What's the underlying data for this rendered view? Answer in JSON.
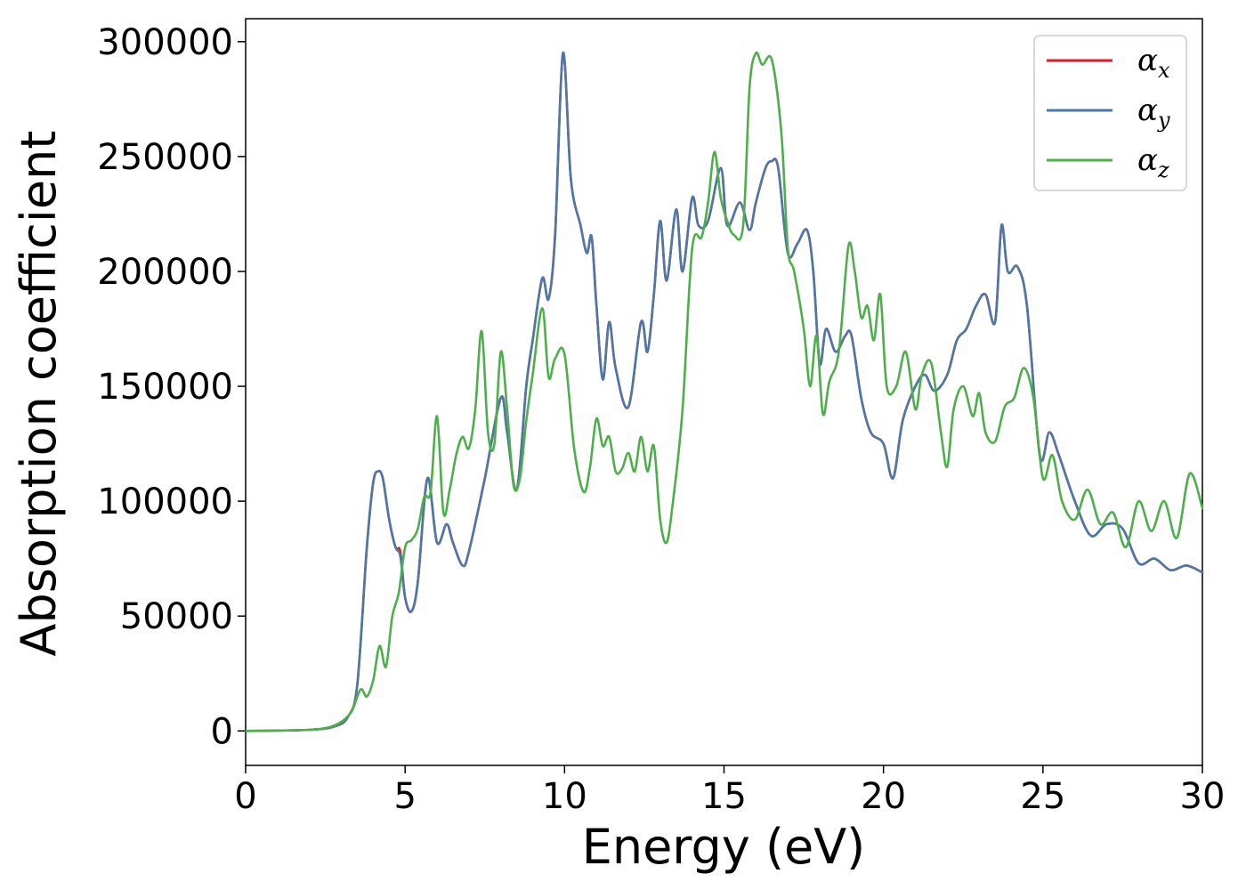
{
  "chart_data": {
    "type": "line",
    "xlabel": "Energy (eV)",
    "ylabel": "Absorption coefficient",
    "xlim": [
      0,
      30
    ],
    "ylim": [
      -15000,
      310000
    ],
    "xticks": [
      0,
      5,
      10,
      15,
      20,
      25,
      30
    ],
    "yticks": [
      0,
      50000,
      100000,
      150000,
      200000,
      250000,
      300000
    ],
    "grid": false,
    "legend_position": "top-right",
    "series": [
      {
        "name": "α_x",
        "legend_main": "α",
        "legend_sub": "x",
        "color": "#e41a1c",
        "x": [
          0,
          2,
          2.8,
          3.2,
          3.5,
          3.8,
          4.0,
          4.15,
          4.3,
          4.5,
          4.7,
          4.85,
          5.0,
          5.2,
          5.4,
          5.7,
          6.0,
          6.3,
          6.5,
          6.8,
          7.0,
          7.5,
          8.0,
          8.2,
          8.5,
          8.8,
          9.0,
          9.3,
          9.5,
          9.7,
          9.95,
          10.2,
          10.5,
          10.7,
          10.85,
          11.0,
          11.2,
          11.4,
          11.6,
          12.0,
          12.4,
          12.6,
          12.8,
          13.0,
          13.2,
          13.5,
          13.7,
          14.0,
          14.2,
          14.5,
          14.9,
          15.1,
          15.5,
          15.8,
          16.0,
          16.3,
          16.5,
          16.7,
          17.0,
          17.3,
          17.6,
          17.8,
          18.0,
          18.2,
          18.5,
          18.8,
          19.0,
          19.3,
          19.6,
          20.0,
          20.3,
          20.6,
          21.0,
          21.3,
          21.6,
          22.0,
          22.3,
          22.6,
          22.9,
          23.2,
          23.5,
          23.7,
          23.9,
          24.2,
          24.5,
          24.9,
          25.2,
          25.5,
          26.0,
          26.5,
          27.0,
          27.5,
          28.0,
          28.5,
          29.0,
          29.5,
          30.0
        ],
        "values": [
          0,
          500,
          2000,
          6000,
          20000,
          80000,
          108000,
          113000,
          110000,
          92000,
          80000,
          78000,
          58000,
          52000,
          65000,
          110000,
          82000,
          90000,
          82000,
          72000,
          78000,
          110000,
          145000,
          130000,
          105000,
          150000,
          170000,
          197000,
          188000,
          215000,
          295000,
          240000,
          220000,
          208000,
          215000,
          185000,
          153000,
          178000,
          158000,
          141000,
          178000,
          165000,
          190000,
          222000,
          196000,
          227000,
          200000,
          232000,
          220000,
          222000,
          245000,
          220000,
          230000,
          218000,
          230000,
          245000,
          248000,
          245000,
          208000,
          212000,
          218000,
          200000,
          160000,
          175000,
          165000,
          172000,
          172000,
          145000,
          130000,
          125000,
          110000,
          135000,
          150000,
          155000,
          148000,
          155000,
          170000,
          175000,
          185000,
          190000,
          178000,
          220000,
          200000,
          202000,
          185000,
          120000,
          130000,
          120000,
          100000,
          85000,
          90000,
          88000,
          73000,
          75000,
          70000,
          72000,
          69000
        ]
      },
      {
        "name": "α_y",
        "legend_main": "α",
        "legend_sub": "y",
        "color": "#4a78a8",
        "x": [
          0,
          2,
          2.8,
          3.2,
          3.5,
          3.8,
          4.0,
          4.15,
          4.3,
          4.5,
          4.7,
          4.85,
          5.0,
          5.2,
          5.4,
          5.7,
          6.0,
          6.3,
          6.5,
          6.8,
          7.0,
          7.5,
          8.0,
          8.2,
          8.5,
          8.8,
          9.0,
          9.3,
          9.5,
          9.7,
          9.95,
          10.2,
          10.5,
          10.7,
          10.85,
          11.0,
          11.2,
          11.4,
          11.6,
          12.0,
          12.4,
          12.6,
          12.8,
          13.0,
          13.2,
          13.5,
          13.7,
          14.0,
          14.2,
          14.5,
          14.9,
          15.1,
          15.5,
          15.8,
          16.0,
          16.3,
          16.5,
          16.7,
          17.0,
          17.3,
          17.6,
          17.8,
          18.0,
          18.2,
          18.5,
          18.8,
          19.0,
          19.3,
          19.6,
          20.0,
          20.3,
          20.6,
          21.0,
          21.3,
          21.6,
          22.0,
          22.3,
          22.6,
          22.9,
          23.2,
          23.5,
          23.7,
          23.9,
          24.2,
          24.5,
          24.9,
          25.2,
          25.5,
          26.0,
          26.5,
          27.0,
          27.5,
          28.0,
          28.5,
          29.0,
          29.5,
          30.0
        ],
        "values": [
          0,
          500,
          2000,
          6000,
          20000,
          80000,
          108000,
          113000,
          110000,
          92000,
          80000,
          76000,
          58000,
          52000,
          65000,
          110000,
          82000,
          90000,
          82000,
          72000,
          78000,
          110000,
          145000,
          130000,
          105000,
          150000,
          170000,
          197000,
          188000,
          215000,
          295000,
          240000,
          220000,
          208000,
          215000,
          185000,
          153000,
          178000,
          158000,
          141000,
          178000,
          165000,
          190000,
          222000,
          196000,
          227000,
          200000,
          232000,
          220000,
          222000,
          245000,
          220000,
          230000,
          218000,
          230000,
          245000,
          248000,
          245000,
          208000,
          212000,
          218000,
          200000,
          160000,
          175000,
          165000,
          172000,
          172000,
          145000,
          130000,
          125000,
          110000,
          135000,
          150000,
          155000,
          148000,
          155000,
          170000,
          175000,
          185000,
          190000,
          178000,
          220000,
          200000,
          202000,
          185000,
          120000,
          130000,
          120000,
          100000,
          85000,
          90000,
          88000,
          73000,
          75000,
          70000,
          72000,
          69000
        ]
      },
      {
        "name": "α_z",
        "legend_main": "α",
        "legend_sub": "z",
        "color": "#4daf4a",
        "x": [
          0,
          2,
          2.8,
          3.3,
          3.6,
          3.8,
          4.0,
          4.2,
          4.4,
          4.6,
          4.8,
          5.0,
          5.2,
          5.4,
          5.6,
          5.8,
          6.0,
          6.2,
          6.4,
          6.6,
          6.8,
          7.0,
          7.2,
          7.4,
          7.6,
          7.8,
          8.0,
          8.2,
          8.4,
          8.6,
          8.8,
          9.0,
          9.3,
          9.5,
          9.7,
          10.0,
          10.3,
          10.6,
          10.8,
          11.0,
          11.2,
          11.4,
          11.6,
          11.8,
          12.0,
          12.2,
          12.4,
          12.6,
          12.8,
          13.0,
          13.2,
          13.4,
          13.7,
          14.0,
          14.3,
          14.5,
          14.7,
          14.9,
          15.1,
          15.3,
          15.6,
          15.8,
          16.0,
          16.2,
          16.5,
          16.8,
          17.0,
          17.2,
          17.5,
          17.7,
          17.9,
          18.1,
          18.3,
          18.6,
          18.9,
          19.1,
          19.3,
          19.5,
          19.7,
          19.9,
          20.1,
          20.4,
          20.7,
          21.0,
          21.2,
          21.5,
          21.8,
          22.0,
          22.2,
          22.5,
          22.8,
          23.0,
          23.2,
          23.5,
          23.8,
          24.1,
          24.4,
          24.7,
          25.0,
          25.3,
          25.6,
          26.0,
          26.4,
          26.8,
          27.2,
          27.6,
          28.0,
          28.4,
          28.8,
          29.2,
          29.6,
          30.0
        ],
        "values": [
          0,
          500,
          2500,
          8000,
          18000,
          15000,
          22000,
          37000,
          28000,
          50000,
          60000,
          80000,
          83000,
          88000,
          102000,
          104000,
          137000,
          95000,
          105000,
          120000,
          128000,
          123000,
          140000,
          174000,
          130000,
          125000,
          165000,
          140000,
          107000,
          110000,
          135000,
          155000,
          184000,
          154000,
          162000,
          164000,
          123000,
          104000,
          115000,
          136000,
          124000,
          128000,
          113000,
          114000,
          121000,
          113000,
          128000,
          113000,
          124000,
          92000,
          82000,
          100000,
          140000,
          210000,
          215000,
          230000,
          252000,
          232000,
          222000,
          216000,
          220000,
          280000,
          295000,
          290000,
          292000,
          260000,
          210000,
          200000,
          175000,
          150000,
          172000,
          138000,
          152000,
          165000,
          211000,
          200000,
          180000,
          185000,
          170000,
          190000,
          150000,
          150000,
          165000,
          140000,
          155000,
          160000,
          130000,
          115000,
          140000,
          150000,
          137000,
          147000,
          130000,
          126000,
          141000,
          145000,
          158000,
          145000,
          110000,
          120000,
          100000,
          92000,
          105000,
          90000,
          95000,
          80000,
          100000,
          87000,
          100000,
          84000,
          112000,
          97000
        ]
      }
    ]
  }
}
